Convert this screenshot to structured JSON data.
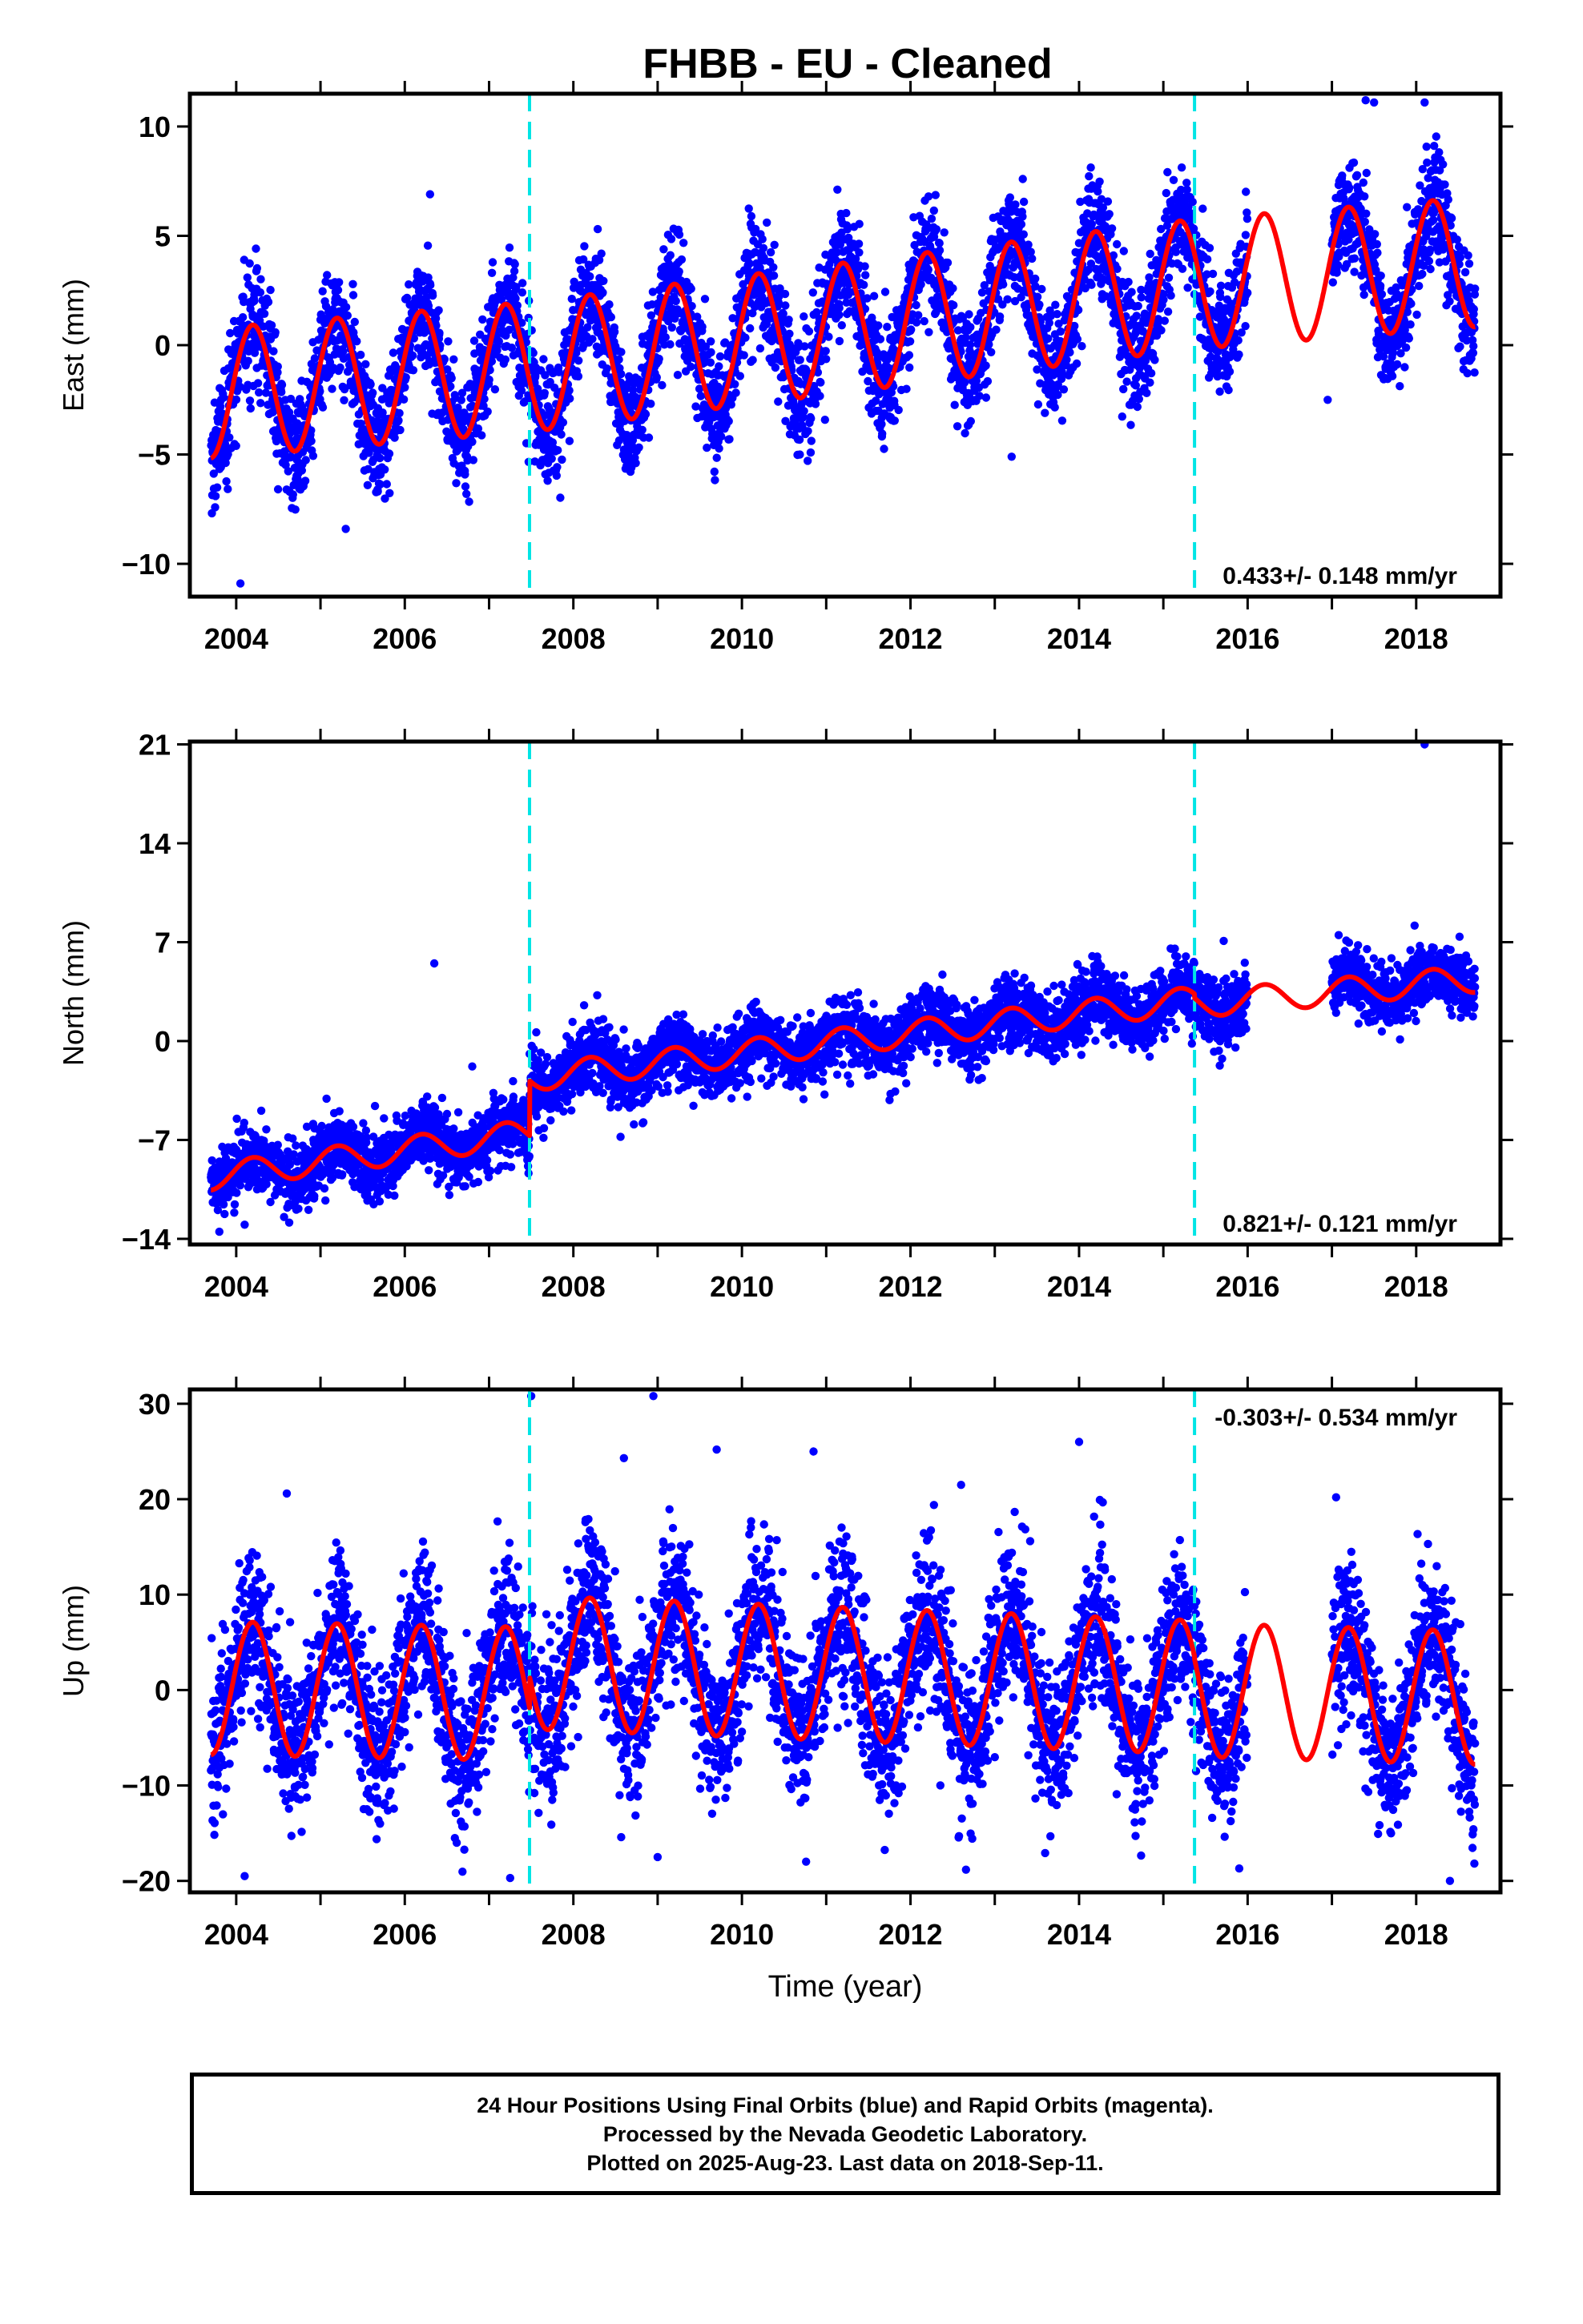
{
  "title": "FHBB  - EU - Cleaned",
  "colors": {
    "data": "#0000ff",
    "model": "#ff0000",
    "break": "#00e5e5",
    "axes": "#000000"
  },
  "chart_data": [
    {
      "type": "scatter",
      "name": "east",
      "ylabel": "East (mm)",
      "xlabel": "",
      "xlim": [
        2003.45,
        2019.0
      ],
      "ylim": [
        -11.5,
        11.5
      ],
      "yticks": [
        10,
        5,
        0,
        -5,
        -10
      ],
      "ytick_labels": [
        "10",
        "5",
        "0",
        "−5",
        "−10"
      ],
      "xticks": [
        2004,
        2006,
        2008,
        2010,
        2012,
        2014,
        2016,
        2018
      ],
      "xtick_labels": [
        "2004",
        "2006",
        "2008",
        "2010",
        "2012",
        "2014",
        "2016",
        "2018"
      ],
      "breaks": [
        2007.48,
        2015.37
      ],
      "rate_label": "0.433+/- 0.148 mm/yr",
      "rate_position": "bottom-right",
      "model": {
        "type": "line",
        "start": 2003.7,
        "end": 2018.7,
        "amplitude": [
          2.8,
          2.8
        ],
        "noise": 1.3,
        "anchors": [
          [
            2003.7,
            -2.2
          ],
          [
            2007.48,
            -1.0
          ],
          [
            2015.37,
            2.8
          ],
          [
            2018.7,
            3.8
          ]
        ]
      },
      "data_gaps": [
        [
          2016.0,
          2017.0
        ]
      ],
      "outliers": [
        [
          2006.3,
          6.9
        ],
        [
          2017.4,
          11.2
        ],
        [
          2017.5,
          11.1
        ],
        [
          2018.1,
          11.1
        ],
        [
          2004.05,
          -10.9
        ],
        [
          2005.3,
          -8.4
        ],
        [
          2016.95,
          -2.5
        ],
        [
          2013.2,
          -5.1
        ]
      ]
    },
    {
      "type": "scatter",
      "name": "north",
      "ylabel": "North (mm)",
      "xlabel": "",
      "xlim": [
        2003.45,
        2019.0
      ],
      "ylim": [
        -14.4,
        21.2
      ],
      "yticks": [
        21,
        14,
        7,
        0,
        -7,
        -14
      ],
      "ytick_labels": [
        "21",
        "14",
        "7",
        "0",
        "−7",
        "−14"
      ],
      "xticks": [
        2004,
        2006,
        2008,
        2010,
        2012,
        2014,
        2016,
        2018
      ],
      "xtick_labels": [
        "2004",
        "2006",
        "2008",
        "2010",
        "2012",
        "2014",
        "2016",
        "2018"
      ],
      "breaks": [
        2007.48,
        2015.37
      ],
      "rate_label": "0.821+/- 0.121 mm/yr",
      "rate_position": "bottom-right",
      "model": {
        "type": "line",
        "start": 2003.7,
        "end": 2018.7,
        "amplitude": [
          0.9,
          0.9
        ],
        "noise": 1.2,
        "anchors": [
          [
            2003.7,
            -9.6
          ],
          [
            2007.48,
            -6.5
          ],
          [
            2007.481,
            -2.6
          ],
          [
            2015.37,
            2.9
          ],
          [
            2015.371,
            2.6
          ],
          [
            2018.7,
            4.4
          ]
        ]
      },
      "data_gaps": [
        [
          2016.0,
          2017.0
        ]
      ],
      "outliers": [
        [
          2006.35,
          5.5
        ],
        [
          2018.1,
          21.0
        ],
        [
          2003.8,
          -13.5
        ],
        [
          2004.1,
          -13.0
        ],
        [
          2006.8,
          -1.8
        ]
      ]
    },
    {
      "type": "scatter",
      "name": "up",
      "ylabel": "Up (mm)",
      "xlabel": "Time (year)",
      "xlim": [
        2003.45,
        2019.0
      ],
      "ylim": [
        -21.2,
        31.5
      ],
      "yticks": [
        30,
        20,
        10,
        0,
        -10,
        -20
      ],
      "ytick_labels": [
        "30",
        "20",
        "10",
        "0",
        "−10",
        "−20"
      ],
      "xticks": [
        2004,
        2006,
        2008,
        2010,
        2012,
        2014,
        2016,
        2018
      ],
      "xtick_labels": [
        "2004",
        "2006",
        "2008",
        "2010",
        "2012",
        "2014",
        "2016",
        "2018"
      ],
      "breaks": [
        2007.48,
        2015.37
      ],
      "rate_label": "-0.303+/- 0.534 mm/yr",
      "rate_position": "top-right",
      "model": {
        "type": "line",
        "start": 2003.7,
        "end": 2018.7,
        "amplitude": [
          6.6,
          6.6
        ],
        "noise": 4.0,
        "anchors": [
          [
            2003.7,
            0.2
          ],
          [
            2007.48,
            -0.4
          ],
          [
            2007.481,
            2.9
          ],
          [
            2015.37,
            0.3
          ],
          [
            2015.371,
            0.0
          ],
          [
            2018.7,
            -0.8
          ]
        ]
      },
      "data_gaps": [
        [
          2016.0,
          2017.0
        ]
      ],
      "outliers": [
        [
          2007.5,
          30.8
        ],
        [
          2008.95,
          30.8
        ],
        [
          2008.6,
          24.3
        ],
        [
          2009.7,
          25.2
        ],
        [
          2010.85,
          25.0
        ],
        [
          2014.0,
          26.0
        ],
        [
          2004.6,
          20.6
        ],
        [
          2012.6,
          21.5
        ],
        [
          2004.1,
          -19.5
        ],
        [
          2007.25,
          -19.7
        ],
        [
          2009.0,
          -17.5
        ],
        [
          2015.9,
          -18.7
        ],
        [
          2018.4,
          -20.0
        ]
      ]
    }
  ],
  "footer": {
    "line1": "24 Hour Positions Using Final Orbits (blue) and Rapid Orbits (magenta).",
    "line2": "Processed by the Nevada Geodetic Laboratory.",
    "line3": "Plotted on 2025-Aug-23. Last data on 2018-Sep-11."
  }
}
